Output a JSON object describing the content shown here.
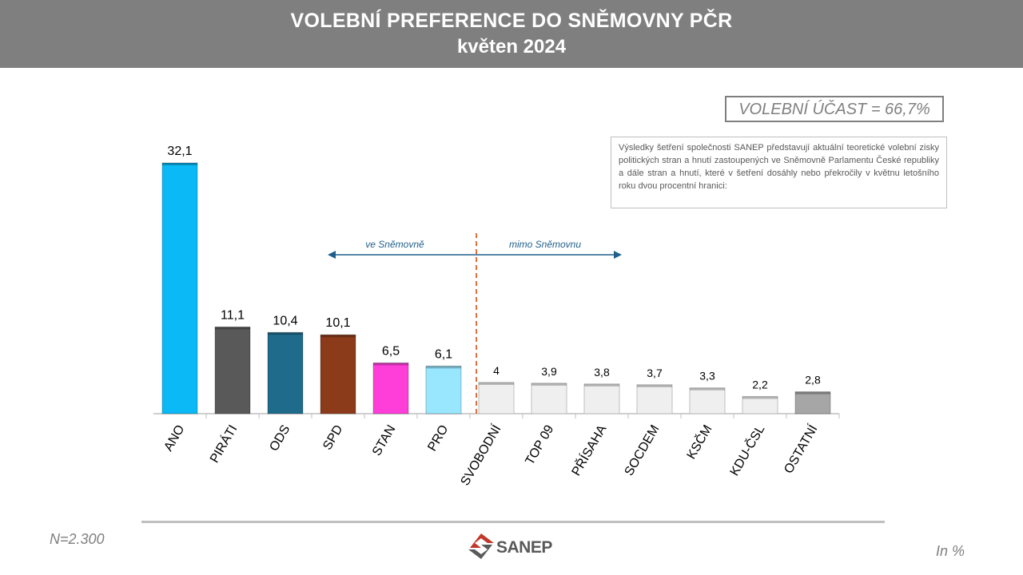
{
  "header": {
    "title": "VOLEBNÍ PREFERENCE DO SNĚMOVNY PČR",
    "subtitle": "květen 2024"
  },
  "turnout_box": "VOLEBNÍ ÚČAST = 66,7%",
  "note": "Výsledky šetření společnosti SANEP představují aktuální teoretické volební zisky politických stran a hnutí zastoupených ve Sněmovně Parlamentu České republiky a dále stran a hnutí, které v šetření dosáhly nebo překročily v květnu letošního roku dvou procentní hranici:",
  "sample_size": "N=2.300",
  "unit": "In %",
  "logo": {
    "name": "SANEP",
    "colors": [
      "#c0392b",
      "#595959"
    ]
  },
  "chart_data": {
    "type": "bar",
    "categories": [
      "ANO",
      "PIRÁTI",
      "ODS",
      "SPD",
      "STAN",
      "PRO",
      "SVOBODNÍ",
      "TOP 09",
      "PŘÍSAHA",
      "SOCDEM",
      "KSČM",
      "KDU-ČSL",
      "OSTATNÍ"
    ],
    "values": [
      32.1,
      11.1,
      10.4,
      10.1,
      6.5,
      6.1,
      4,
      3.9,
      3.8,
      3.7,
      3.3,
      2.2,
      2.8
    ],
    "value_labels": [
      "32,1",
      "11,1",
      "10,4",
      "10,1",
      "6,5",
      "6,1",
      "4",
      "3,9",
      "3,8",
      "3,7",
      "3,3",
      "2,2",
      "2,8"
    ],
    "colors": [
      "#0ab9f5",
      "#595959",
      "#1f6b8c",
      "#8b3a1a",
      "#ff3ed9",
      "#99e6ff",
      "#efefef",
      "#efefef",
      "#efefef",
      "#efefef",
      "#efefef",
      "#efefef",
      "#a6a6a6"
    ],
    "ylim": [
      0,
      34
    ],
    "annotations": {
      "in_parliament": "ve Sněmovně",
      "outside_parliament": "mimo Sněmovnu",
      "divider_after_index": 5,
      "divider_color": "#e07040",
      "arrow_color": "#1f5f8b"
    }
  }
}
